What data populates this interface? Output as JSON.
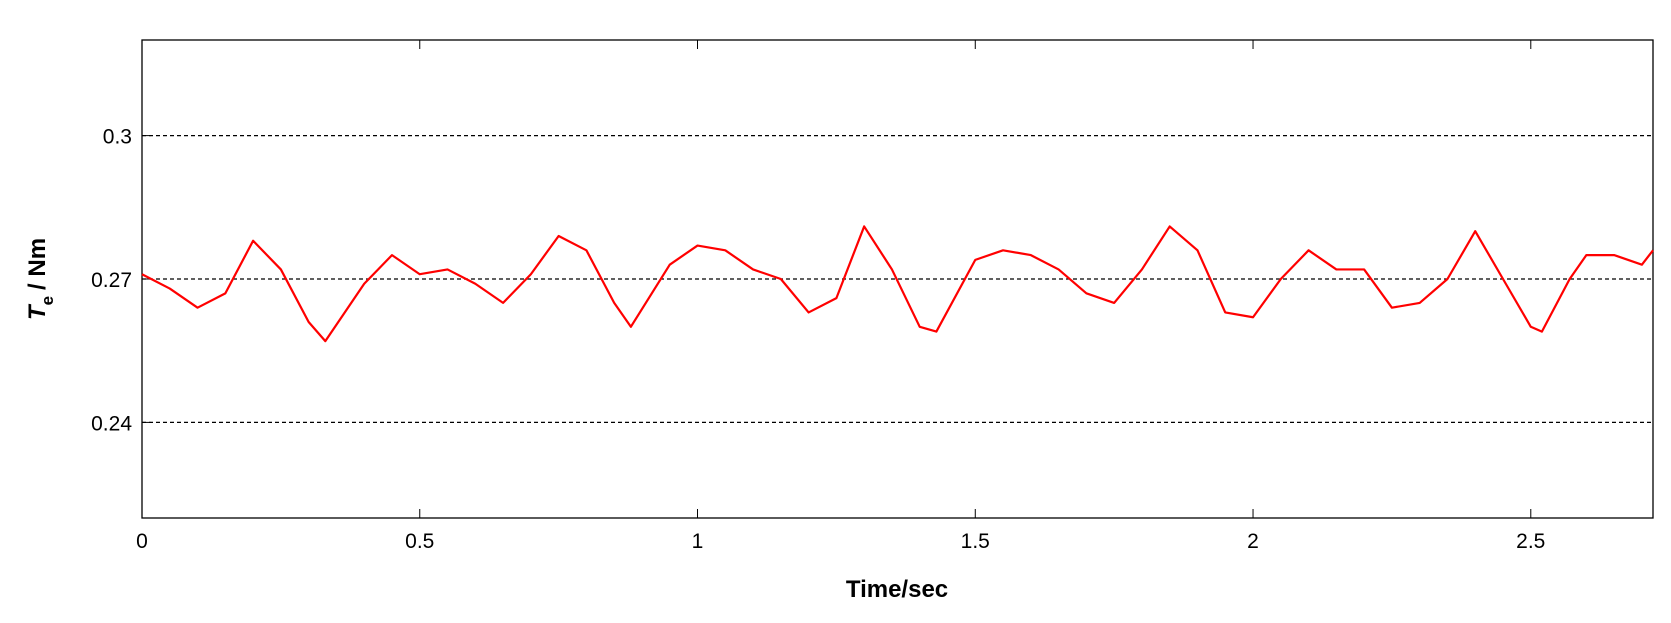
{
  "chart_data": {
    "type": "line",
    "x_label": "Time/sec",
    "y_label": {
      "symbol": "T",
      "subscript": "e",
      "unit": "/ Nm"
    },
    "x": [
      0,
      0.05,
      0.1,
      0.15,
      0.2,
      0.25,
      0.3,
      0.33,
      0.4,
      0.45,
      0.5,
      0.55,
      0.6,
      0.65,
      0.7,
      0.75,
      0.8,
      0.85,
      0.88,
      0.95,
      1.0,
      1.05,
      1.1,
      1.15,
      1.2,
      1.25,
      1.3,
      1.35,
      1.4,
      1.43,
      1.5,
      1.55,
      1.6,
      1.65,
      1.7,
      1.75,
      1.8,
      1.85,
      1.9,
      1.95,
      2.0,
      2.05,
      2.1,
      2.15,
      2.2,
      2.25,
      2.3,
      2.35,
      2.4,
      2.45,
      2.5,
      2.52,
      2.57,
      2.6,
      2.65,
      2.7,
      2.72
    ],
    "series": [
      {
        "color": "#ff0000",
        "values": [
          0.271,
          0.268,
          0.264,
          0.267,
          0.278,
          0.272,
          0.261,
          0.257,
          0.269,
          0.275,
          0.271,
          0.272,
          0.269,
          0.265,
          0.271,
          0.279,
          0.276,
          0.265,
          0.26,
          0.273,
          0.277,
          0.276,
          0.272,
          0.27,
          0.263,
          0.266,
          0.281,
          0.272,
          0.26,
          0.259,
          0.274,
          0.276,
          0.275,
          0.272,
          0.267,
          0.265,
          0.272,
          0.281,
          0.276,
          0.263,
          0.262,
          0.27,
          0.276,
          0.272,
          0.272,
          0.264,
          0.265,
          0.27,
          0.28,
          0.27,
          0.26,
          0.259,
          0.27,
          0.275,
          0.275,
          0.273,
          0.276
        ]
      }
    ],
    "xlim": [
      0,
      2.72
    ],
    "xticks": [
      0,
      0.5,
      1,
      1.5,
      2,
      2.5
    ],
    "ylim": [
      0.22,
      0.32
    ],
    "yticks": [
      0.24,
      0.27,
      0.3
    ],
    "grid": true
  }
}
